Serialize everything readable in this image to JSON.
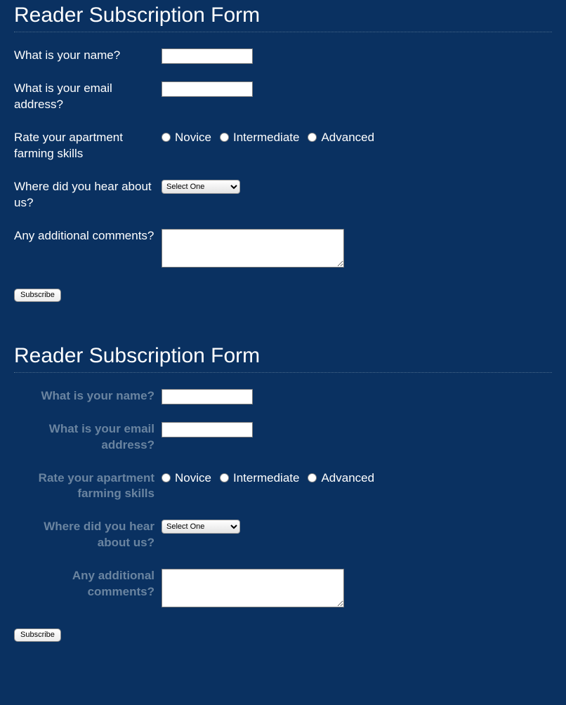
{
  "colors": {
    "background": "#0a3161",
    "text": "#ffffff",
    "faded_label": "#6a84a0",
    "divider": "#4a6a8a"
  },
  "form1": {
    "title": "Reader Subscription Form",
    "label_align": "left",
    "label_style": "normal-white",
    "fields": {
      "name": {
        "label": "What is your name?",
        "value": ""
      },
      "email": {
        "label": "What is your email address?",
        "value": ""
      },
      "skills": {
        "label": "Rate your apartment farming skills",
        "options": [
          "Novice",
          "Intermediate",
          "Advanced"
        ]
      },
      "hear": {
        "label": "Where did you hear about us?",
        "selected": "Select One"
      },
      "comments": {
        "label": "Any additional comments?",
        "value": ""
      }
    },
    "submit_label": "Subscribe"
  },
  "form2": {
    "title": "Reader Subscription Form",
    "label_align": "right",
    "label_style": "bold-faded",
    "fields": {
      "name": {
        "label": "What is your name?",
        "value": ""
      },
      "email": {
        "label": "What is your email address?",
        "value": ""
      },
      "skills": {
        "label": "Rate your apartment farming skills",
        "options": [
          "Novice",
          "Intermediate",
          "Advanced"
        ]
      },
      "hear": {
        "label": "Where did you hear about us?",
        "selected": "Select One"
      },
      "comments": {
        "label": "Any additional comments?",
        "value": ""
      }
    },
    "submit_label": "Subscribe"
  }
}
